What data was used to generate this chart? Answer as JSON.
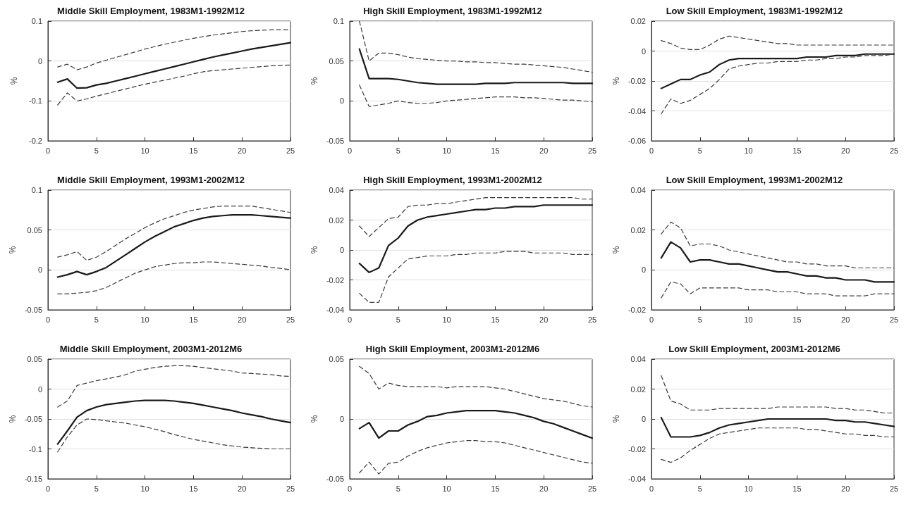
{
  "chart_data": [
    {
      "type": "line",
      "title": "Middle Skill Employment, 1983M1-1992M12",
      "ylabel": "%",
      "x": [
        1,
        2,
        3,
        4,
        5,
        6,
        7,
        8,
        9,
        10,
        11,
        12,
        13,
        14,
        15,
        16,
        17,
        18,
        19,
        20,
        21,
        22,
        23,
        24,
        25
      ],
      "xlim": [
        0,
        25
      ],
      "xticks": [
        0,
        5,
        10,
        15,
        20,
        25
      ],
      "ylim": [
        -0.2,
        0.1
      ],
      "yticks": [
        -0.2,
        -0.1,
        0,
        0.1
      ],
      "grid": "y",
      "marker": "none",
      "series": [
        {
          "color": "#1a1a1a",
          "line_style": "solid",
          "values": [
            -0.053,
            -0.045,
            -0.068,
            -0.067,
            -0.06,
            -0.056,
            -0.05,
            -0.044,
            -0.038,
            -0.032,
            -0.026,
            -0.02,
            -0.014,
            -0.008,
            -0.002,
            0.004,
            0.01,
            0.015,
            0.02,
            0.025,
            0.03,
            0.034,
            0.038,
            0.042,
            0.046
          ]
        },
        {
          "color": "#3a3a3a",
          "line_style": "dashed",
          "values": [
            -0.015,
            -0.008,
            -0.022,
            -0.015,
            -0.005,
            0.002,
            0.009,
            0.016,
            0.023,
            0.03,
            0.036,
            0.042,
            0.047,
            0.052,
            0.057,
            0.061,
            0.065,
            0.068,
            0.071,
            0.074,
            0.076,
            0.077,
            0.078,
            0.078,
            0.078
          ]
        },
        {
          "color": "#3a3a3a",
          "line_style": "dashed",
          "values": [
            -0.11,
            -0.08,
            -0.1,
            -0.095,
            -0.088,
            -0.082,
            -0.076,
            -0.07,
            -0.064,
            -0.058,
            -0.053,
            -0.048,
            -0.043,
            -0.038,
            -0.032,
            -0.027,
            -0.024,
            -0.022,
            -0.02,
            -0.018,
            -0.016,
            -0.014,
            -0.012,
            -0.011,
            -0.01
          ]
        }
      ]
    },
    {
      "type": "line",
      "title": "High Skill Employment, 1983M1-1992M12",
      "ylabel": "%",
      "x": [
        1,
        2,
        3,
        4,
        5,
        6,
        7,
        8,
        9,
        10,
        11,
        12,
        13,
        14,
        15,
        16,
        17,
        18,
        19,
        20,
        21,
        22,
        23,
        24,
        25
      ],
      "xlim": [
        0,
        25
      ],
      "xticks": [
        0,
        5,
        10,
        15,
        20,
        25
      ],
      "ylim": [
        -0.05,
        0.1
      ],
      "yticks": [
        -0.05,
        0,
        0.05,
        0.1
      ],
      "grid": "y",
      "marker": "none",
      "series": [
        {
          "color": "#1a1a1a",
          "line_style": "solid",
          "values": [
            0.065,
            0.028,
            0.028,
            0.028,
            0.027,
            0.025,
            0.023,
            0.022,
            0.021,
            0.021,
            0.021,
            0.021,
            0.021,
            0.022,
            0.022,
            0.022,
            0.023,
            0.023,
            0.023,
            0.023,
            0.023,
            0.023,
            0.022,
            0.022,
            0.022
          ]
        },
        {
          "color": "#3a3a3a",
          "line_style": "dashed",
          "values": [
            0.1,
            0.05,
            0.06,
            0.06,
            0.058,
            0.055,
            0.053,
            0.052,
            0.051,
            0.05,
            0.05,
            0.049,
            0.049,
            0.048,
            0.048,
            0.047,
            0.046,
            0.046,
            0.045,
            0.044,
            0.043,
            0.042,
            0.04,
            0.038,
            0.036
          ]
        },
        {
          "color": "#3a3a3a",
          "line_style": "dashed",
          "values": [
            0.02,
            -0.007,
            -0.005,
            -0.003,
            0,
            -0.002,
            -0.003,
            -0.003,
            -0.002,
            0,
            0.001,
            0.002,
            0.003,
            0.004,
            0.005,
            0.005,
            0.005,
            0.004,
            0.004,
            0.003,
            0.002,
            0.001,
            0.001,
            0,
            -0.001
          ]
        }
      ]
    },
    {
      "type": "line",
      "title": "Low Skill Employment, 1983M1-1992M12",
      "ylabel": "%",
      "x": [
        1,
        2,
        3,
        4,
        5,
        6,
        7,
        8,
        9,
        10,
        11,
        12,
        13,
        14,
        15,
        16,
        17,
        18,
        19,
        20,
        21,
        22,
        23,
        24,
        25
      ],
      "xlim": [
        0,
        25
      ],
      "xticks": [
        0,
        5,
        10,
        15,
        20,
        25
      ],
      "ylim": [
        -0.06,
        0.02
      ],
      "yticks": [
        -0.06,
        -0.04,
        -0.02,
        0,
        0.02
      ],
      "grid": "y",
      "marker": "none",
      "series": [
        {
          "color": "#1a1a1a",
          "line_style": "solid",
          "values": [
            -0.025,
            -0.022,
            -0.019,
            -0.019,
            -0.016,
            -0.014,
            -0.009,
            -0.006,
            -0.005,
            -0.005,
            -0.005,
            -0.005,
            -0.005,
            -0.005,
            -0.005,
            -0.004,
            -0.004,
            -0.004,
            -0.003,
            -0.003,
            -0.003,
            -0.002,
            -0.002,
            -0.002,
            -0.002
          ]
        },
        {
          "color": "#3a3a3a",
          "line_style": "dashed",
          "values": [
            0.007,
            0.005,
            0.002,
            0.001,
            0.001,
            0.004,
            0.008,
            0.01,
            0.009,
            0.008,
            0.007,
            0.006,
            0.005,
            0.005,
            0.004,
            0.004,
            0.004,
            0.004,
            0.004,
            0.004,
            0.004,
            0.004,
            0.004,
            0.004,
            0.004
          ]
        },
        {
          "color": "#3a3a3a",
          "line_style": "dashed",
          "values": [
            -0.042,
            -0.032,
            -0.035,
            -0.033,
            -0.029,
            -0.025,
            -0.019,
            -0.012,
            -0.01,
            -0.009,
            -0.008,
            -0.008,
            -0.007,
            -0.007,
            -0.007,
            -0.006,
            -0.006,
            -0.005,
            -0.005,
            -0.004,
            -0.004,
            -0.003,
            -0.003,
            -0.003,
            -0.002
          ]
        }
      ]
    },
    {
      "type": "line",
      "title": "Middle Skill Employment, 1993M1-2002M12",
      "ylabel": "%",
      "x": [
        1,
        2,
        3,
        4,
        5,
        6,
        7,
        8,
        9,
        10,
        11,
        12,
        13,
        14,
        15,
        16,
        17,
        18,
        19,
        20,
        21,
        22,
        23,
        24,
        25
      ],
      "xlim": [
        0,
        25
      ],
      "xticks": [
        0,
        5,
        10,
        15,
        20,
        25
      ],
      "ylim": [
        -0.05,
        0.1
      ],
      "yticks": [
        -0.05,
        0,
        0.05,
        0.1
      ],
      "grid": "y",
      "marker": "none",
      "series": [
        {
          "color": "#1a1a1a",
          "line_style": "solid",
          "values": [
            -0.009,
            -0.006,
            -0.002,
            -0.006,
            -0.002,
            0.003,
            0.011,
            0.019,
            0.027,
            0.035,
            0.042,
            0.048,
            0.054,
            0.058,
            0.062,
            0.065,
            0.067,
            0.068,
            0.069,
            0.069,
            0.069,
            0.068,
            0.067,
            0.066,
            0.065
          ]
        },
        {
          "color": "#3a3a3a",
          "line_style": "dashed",
          "values": [
            0.016,
            0.019,
            0.023,
            0.012,
            0.016,
            0.023,
            0.031,
            0.039,
            0.046,
            0.053,
            0.059,
            0.064,
            0.068,
            0.072,
            0.075,
            0.077,
            0.079,
            0.08,
            0.08,
            0.08,
            0.08,
            0.078,
            0.076,
            0.074,
            0.072
          ]
        },
        {
          "color": "#3a3a3a",
          "line_style": "dashed",
          "values": [
            -0.03,
            -0.03,
            -0.029,
            -0.028,
            -0.026,
            -0.022,
            -0.016,
            -0.01,
            -0.004,
            0,
            0.004,
            0.006,
            0.008,
            0.009,
            0.009,
            0.01,
            0.01,
            0.009,
            0.008,
            0.007,
            0.006,
            0.005,
            0.003,
            0.002,
            0
          ]
        }
      ]
    },
    {
      "type": "line",
      "title": "High Skill Employment, 1993M1-2002M12",
      "ylabel": "%",
      "x": [
        1,
        2,
        3,
        4,
        5,
        6,
        7,
        8,
        9,
        10,
        11,
        12,
        13,
        14,
        15,
        16,
        17,
        18,
        19,
        20,
        21,
        22,
        23,
        24,
        25
      ],
      "xlim": [
        0,
        25
      ],
      "xticks": [
        0,
        5,
        10,
        15,
        20,
        25
      ],
      "ylim": [
        -0.04,
        0.04
      ],
      "yticks": [
        -0.04,
        -0.02,
        0,
        0.02,
        0.04
      ],
      "grid": "y",
      "marker": "none",
      "series": [
        {
          "color": "#1a1a1a",
          "line_style": "solid",
          "values": [
            -0.009,
            -0.015,
            -0.012,
            0.003,
            0.008,
            0.016,
            0.02,
            0.022,
            0.023,
            0.024,
            0.025,
            0.026,
            0.027,
            0.027,
            0.028,
            0.028,
            0.029,
            0.029,
            0.029,
            0.03,
            0.03,
            0.03,
            0.03,
            0.03,
            0.03
          ]
        },
        {
          "color": "#3a3a3a",
          "line_style": "dashed",
          "values": [
            0.016,
            0.009,
            0.015,
            0.021,
            0.022,
            0.029,
            0.03,
            0.03,
            0.031,
            0.031,
            0.032,
            0.033,
            0.034,
            0.035,
            0.035,
            0.035,
            0.035,
            0.035,
            0.035,
            0.035,
            0.035,
            0.035,
            0.035,
            0.034,
            0.034
          ]
        },
        {
          "color": "#3a3a3a",
          "line_style": "dashed",
          "values": [
            -0.029,
            -0.035,
            -0.035,
            -0.018,
            -0.012,
            -0.006,
            -0.005,
            -0.004,
            -0.004,
            -0.004,
            -0.003,
            -0.003,
            -0.002,
            -0.002,
            -0.002,
            -0.001,
            -0.001,
            -0.001,
            -0.002,
            -0.002,
            -0.002,
            -0.002,
            -0.003,
            -0.003,
            -0.003
          ]
        }
      ]
    },
    {
      "type": "line",
      "title": "Low Skill Employment, 1993M1-2002M12",
      "ylabel": "%",
      "x": [
        1,
        2,
        3,
        4,
        5,
        6,
        7,
        8,
        9,
        10,
        11,
        12,
        13,
        14,
        15,
        16,
        17,
        18,
        19,
        20,
        21,
        22,
        23,
        24,
        25
      ],
      "xlim": [
        0,
        25
      ],
      "xticks": [
        0,
        5,
        10,
        15,
        20,
        25
      ],
      "ylim": [
        -0.02,
        0.04
      ],
      "yticks": [
        -0.02,
        0,
        0.02,
        0.04
      ],
      "grid": "y",
      "marker": "none",
      "series": [
        {
          "color": "#1a1a1a",
          "line_style": "solid",
          "values": [
            0.006,
            0.014,
            0.011,
            0.004,
            0.005,
            0.005,
            0.004,
            0.003,
            0.003,
            0.002,
            0.001,
            0,
            -0.001,
            -0.001,
            -0.002,
            -0.003,
            -0.003,
            -0.004,
            -0.004,
            -0.005,
            -0.005,
            -0.005,
            -0.006,
            -0.006,
            -0.006
          ]
        },
        {
          "color": "#3a3a3a",
          "line_style": "dashed",
          "values": [
            0.018,
            0.024,
            0.021,
            0.012,
            0.013,
            0.013,
            0.012,
            0.01,
            0.009,
            0.008,
            0.007,
            0.006,
            0.005,
            0.004,
            0.004,
            0.003,
            0.003,
            0.002,
            0.002,
            0.002,
            0.001,
            0.001,
            0.001,
            0.001,
            0.001
          ]
        },
        {
          "color": "#3a3a3a",
          "line_style": "dashed",
          "values": [
            -0.014,
            -0.006,
            -0.007,
            -0.012,
            -0.009,
            -0.009,
            -0.009,
            -0.009,
            -0.009,
            -0.01,
            -0.01,
            -0.01,
            -0.011,
            -0.011,
            -0.011,
            -0.012,
            -0.012,
            -0.012,
            -0.013,
            -0.013,
            -0.013,
            -0.013,
            -0.012,
            -0.012,
            -0.012
          ]
        }
      ]
    },
    {
      "type": "line",
      "title": "Middle Skill Employment, 2003M1-2012M6",
      "ylabel": "%",
      "x": [
        1,
        2,
        3,
        4,
        5,
        6,
        7,
        8,
        9,
        10,
        11,
        12,
        13,
        14,
        15,
        16,
        17,
        18,
        19,
        20,
        21,
        22,
        23,
        24,
        25
      ],
      "xlim": [
        0,
        25
      ],
      "xticks": [
        0,
        5,
        10,
        15,
        20,
        25
      ],
      "ylim": [
        -0.15,
        0.05
      ],
      "yticks": [
        -0.15,
        -0.1,
        -0.05,
        0,
        0.05
      ],
      "grid": "y",
      "marker": "none",
      "series": [
        {
          "color": "#1a1a1a",
          "line_style": "solid",
          "values": [
            -0.092,
            -0.07,
            -0.047,
            -0.036,
            -0.03,
            -0.026,
            -0.024,
            -0.022,
            -0.02,
            -0.019,
            -0.019,
            -0.019,
            -0.02,
            -0.022,
            -0.024,
            -0.027,
            -0.03,
            -0.033,
            -0.036,
            -0.04,
            -0.043,
            -0.046,
            -0.05,
            -0.053,
            -0.056
          ]
        },
        {
          "color": "#3a3a3a",
          "line_style": "dashed",
          "values": [
            -0.03,
            -0.02,
            0.006,
            0.01,
            0.014,
            0.017,
            0.02,
            0.024,
            0.03,
            0.033,
            0.036,
            0.038,
            0.039,
            0.039,
            0.038,
            0.036,
            0.034,
            0.032,
            0.03,
            0.027,
            0.026,
            0.025,
            0.024,
            0.022,
            0.021
          ]
        },
        {
          "color": "#3a3a3a",
          "line_style": "dashed",
          "values": [
            -0.105,
            -0.08,
            -0.06,
            -0.05,
            -0.051,
            -0.053,
            -0.055,
            -0.057,
            -0.06,
            -0.063,
            -0.067,
            -0.071,
            -0.076,
            -0.08,
            -0.084,
            -0.087,
            -0.09,
            -0.093,
            -0.095,
            -0.097,
            -0.098,
            -0.099,
            -0.1,
            -0.1,
            -0.1
          ]
        }
      ]
    },
    {
      "type": "line",
      "title": "High Skill Employment, 2003M1-2012M6",
      "ylabel": "%",
      "x": [
        1,
        2,
        3,
        4,
        5,
        6,
        7,
        8,
        9,
        10,
        11,
        12,
        13,
        14,
        15,
        16,
        17,
        18,
        19,
        20,
        21,
        22,
        23,
        24,
        25
      ],
      "xlim": [
        0,
        25
      ],
      "xticks": [
        0,
        5,
        10,
        15,
        20,
        25
      ],
      "ylim": [
        -0.05,
        0.05
      ],
      "yticks": [
        -0.05,
        0,
        0.05
      ],
      "grid": "y",
      "marker": "none",
      "series": [
        {
          "color": "#1a1a1a",
          "line_style": "solid",
          "values": [
            -0.008,
            -0.003,
            -0.016,
            -0.01,
            -0.01,
            -0.005,
            -0.002,
            0.002,
            0.003,
            0.005,
            0.006,
            0.007,
            0.007,
            0.007,
            0.007,
            0.006,
            0.005,
            0.003,
            0.001,
            -0.002,
            -0.004,
            -0.007,
            -0.01,
            -0.013,
            -0.016
          ]
        },
        {
          "color": "#3a3a3a",
          "line_style": "dashed",
          "values": [
            0.044,
            0.038,
            0.025,
            0.03,
            0.028,
            0.027,
            0.027,
            0.027,
            0.027,
            0.026,
            0.027,
            0.027,
            0.027,
            0.027,
            0.026,
            0.025,
            0.023,
            0.021,
            0.019,
            0.017,
            0.016,
            0.015,
            0.013,
            0.011,
            0.01
          ]
        },
        {
          "color": "#3a3a3a",
          "line_style": "dashed",
          "values": [
            -0.045,
            -0.036,
            -0.046,
            -0.037,
            -0.036,
            -0.031,
            -0.027,
            -0.024,
            -0.022,
            -0.02,
            -0.019,
            -0.018,
            -0.018,
            -0.019,
            -0.019,
            -0.02,
            -0.022,
            -0.024,
            -0.026,
            -0.028,
            -0.03,
            -0.032,
            -0.034,
            -0.036,
            -0.037
          ]
        }
      ]
    },
    {
      "type": "line",
      "title": "Low Skill Employment, 2003M1-2012M6",
      "ylabel": "%",
      "x": [
        1,
        2,
        3,
        4,
        5,
        6,
        7,
        8,
        9,
        10,
        11,
        12,
        13,
        14,
        15,
        16,
        17,
        18,
        19,
        20,
        21,
        22,
        23,
        24,
        25
      ],
      "xlim": [
        0,
        25
      ],
      "xticks": [
        0,
        5,
        10,
        15,
        20,
        25
      ],
      "ylim": [
        -0.04,
        0.04
      ],
      "yticks": [
        -0.04,
        -0.02,
        0,
        0.02,
        0.04
      ],
      "grid": "y",
      "marker": "none",
      "series": [
        {
          "color": "#1a1a1a",
          "line_style": "solid",
          "values": [
            0.001,
            -0.012,
            -0.012,
            -0.012,
            -0.011,
            -0.009,
            -0.006,
            -0.004,
            -0.003,
            -0.002,
            -0.001,
            0,
            0,
            0,
            0,
            0,
            0,
            0,
            -0.001,
            -0.001,
            -0.002,
            -0.002,
            -0.003,
            -0.004,
            -0.005
          ]
        },
        {
          "color": "#3a3a3a",
          "line_style": "dashed",
          "values": [
            0.029,
            0.012,
            0.01,
            0.006,
            0.006,
            0.006,
            0.007,
            0.007,
            0.007,
            0.007,
            0.007,
            0.007,
            0.008,
            0.008,
            0.008,
            0.008,
            0.008,
            0.008,
            0.007,
            0.007,
            0.006,
            0.006,
            0.005,
            0.004,
            0.004
          ]
        },
        {
          "color": "#3a3a3a",
          "line_style": "dashed",
          "values": [
            -0.027,
            -0.029,
            -0.026,
            -0.021,
            -0.017,
            -0.013,
            -0.01,
            -0.009,
            -0.008,
            -0.007,
            -0.006,
            -0.006,
            -0.006,
            -0.006,
            -0.006,
            -0.007,
            -0.007,
            -0.008,
            -0.009,
            -0.01,
            -0.01,
            -0.011,
            -0.011,
            -0.012,
            -0.012
          ]
        }
      ]
    }
  ]
}
